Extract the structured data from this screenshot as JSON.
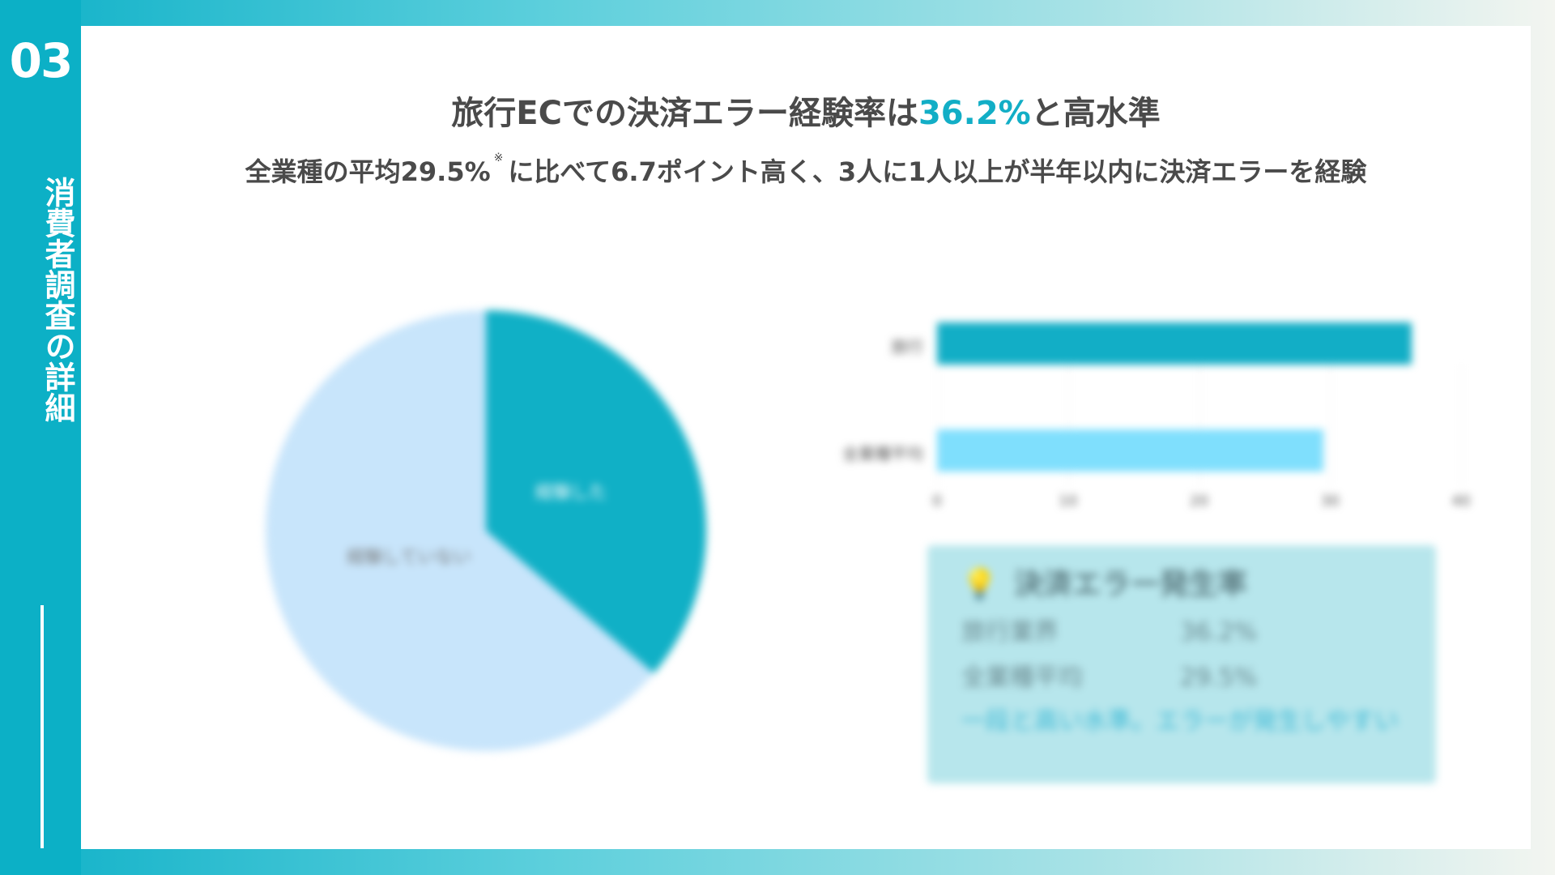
{
  "sidebar": {
    "number": "03",
    "section": "消費者調査の詳細"
  },
  "header": {
    "title_pre": "旅行ECでの決済エラー経験率は",
    "title_highlight": "36.2%",
    "title_post": "と高水準",
    "subtitle_pre": "全業種の平均29.5%",
    "subtitle_mark": "※",
    "subtitle_post": "に比べて6.7ポイント高く、3人に1人以上が半年以内に決済エラーを経験"
  },
  "colors": {
    "accent": "#12aec6",
    "pie_main": "#10b0c6",
    "pie_rest": "#c8e5fb",
    "bar_travel": "#12aec6",
    "bar_avg": "#7fdffd",
    "callout_bg": "#b7e6ec"
  },
  "chart_data": [
    {
      "type": "pie",
      "slices": [
        {
          "label": "経験した",
          "value": 36.2
        },
        {
          "label": "経験していない",
          "value": 63.8
        }
      ]
    },
    {
      "type": "bar",
      "orientation": "horizontal",
      "categories": [
        "旅行",
        "全業種平均"
      ],
      "values": [
        36.2,
        29.5
      ],
      "xlim": [
        0,
        40
      ],
      "ticks": [
        "0",
        "10",
        "20",
        "30",
        "40"
      ],
      "grid": true
    }
  ],
  "callout": {
    "icon": "lightbulb-icon",
    "title": "決済エラー発生率",
    "rows": [
      {
        "label": "旅行業界",
        "value": "36.2%"
      },
      {
        "label": "全業種平均",
        "value": "29.5%"
      }
    ],
    "note": "一段と高い水準。エラーが発生しやすい"
  }
}
